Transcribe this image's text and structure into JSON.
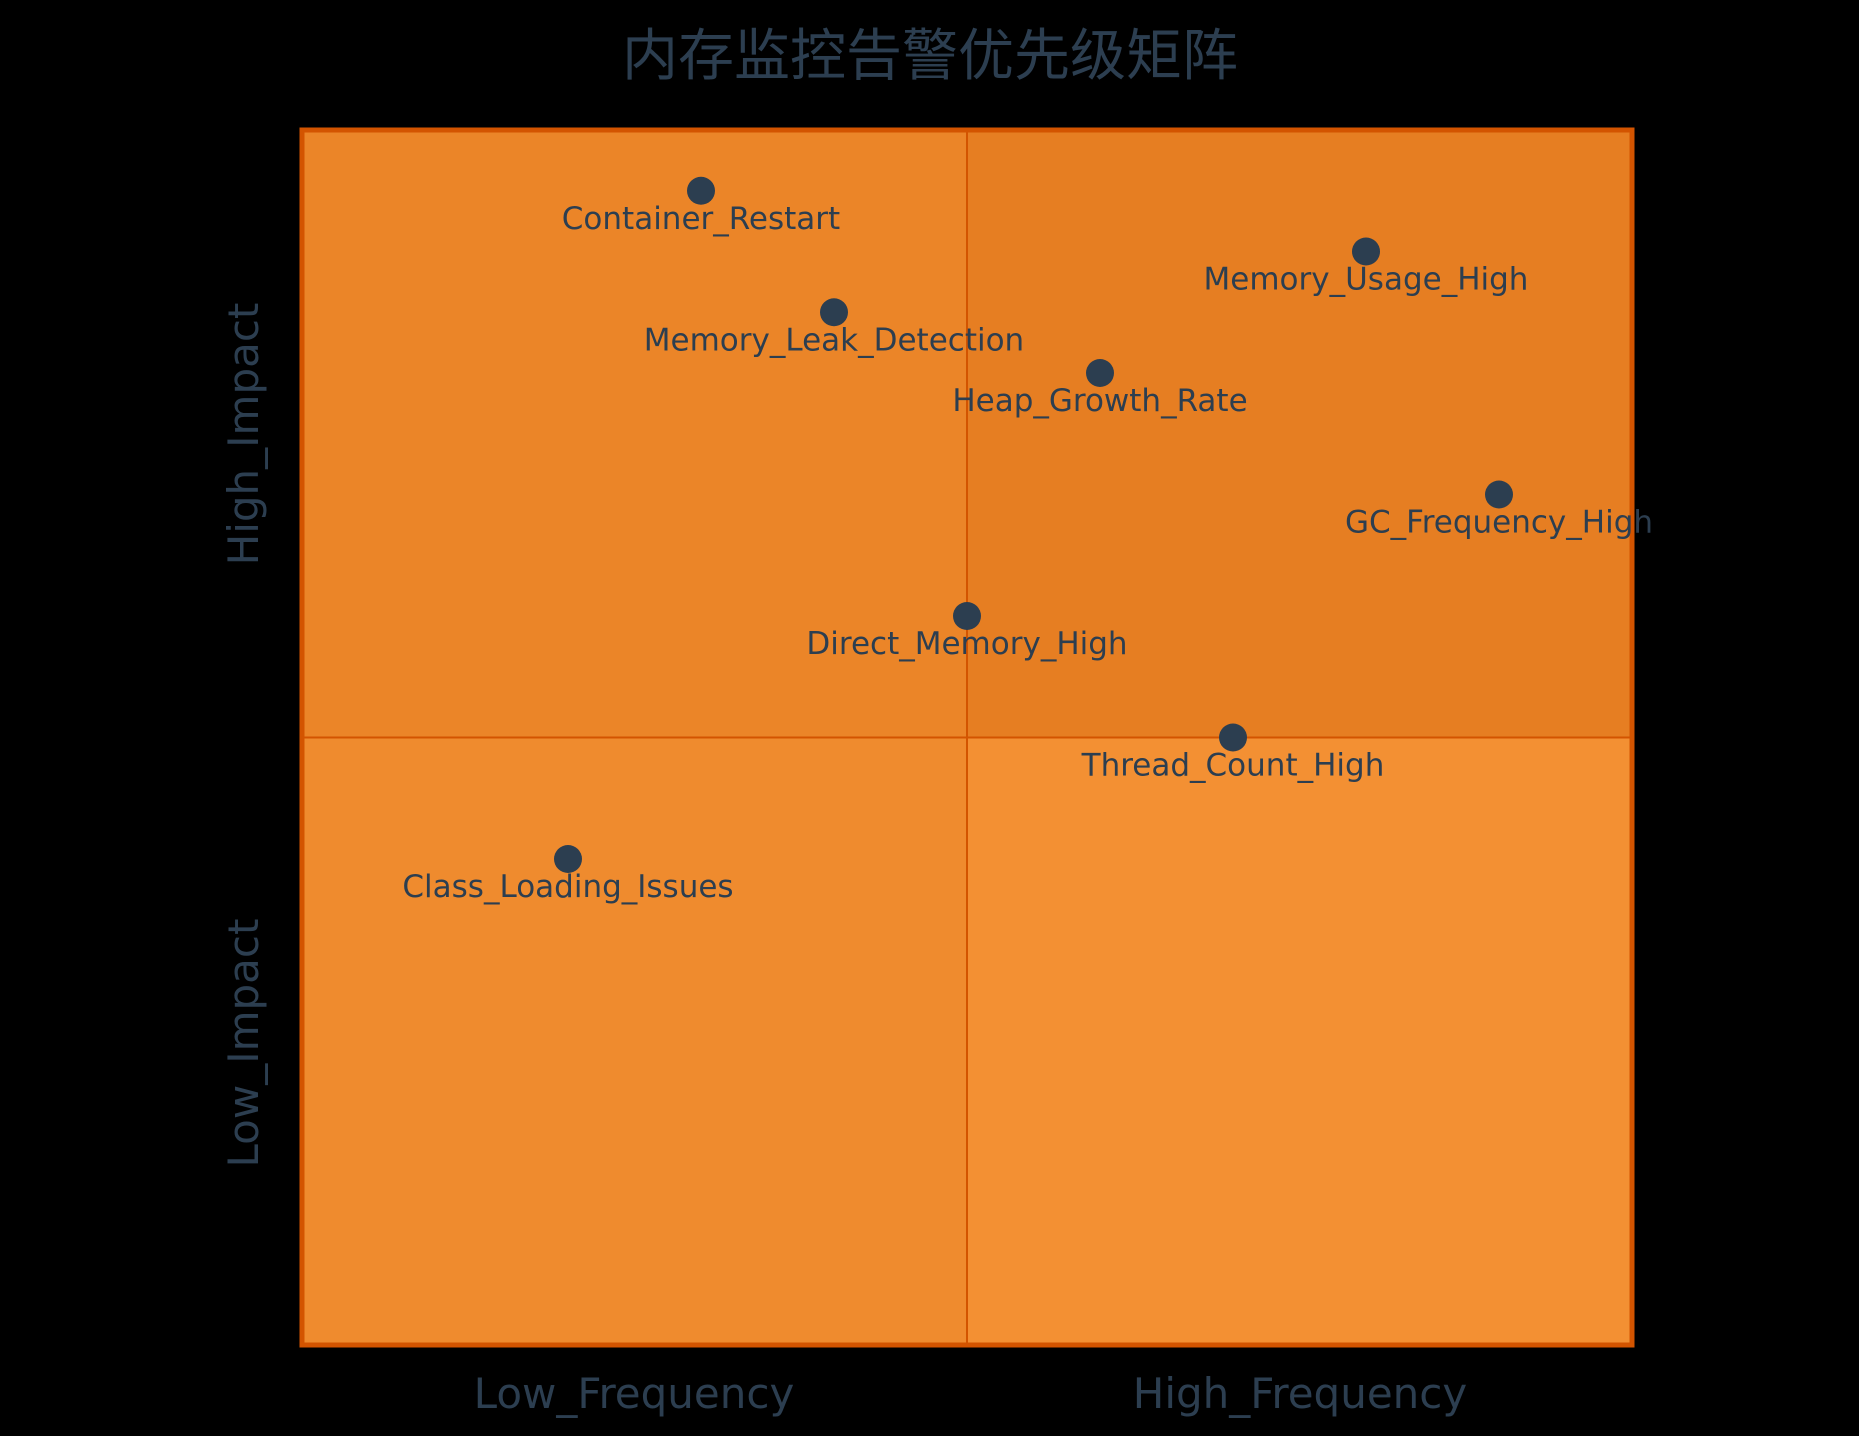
{
  "chart_data": {
    "type": "quadrant",
    "title": "内存监控告警优先级矩阵",
    "x_axis": {
      "left_label": "Low_Frequency",
      "right_label": "High_Frequency",
      "range": [
        0,
        1
      ]
    },
    "y_axis": {
      "bottom_label": "Low_Impact",
      "top_label": "High_Impact",
      "range": [
        0,
        1
      ]
    },
    "quadrant_colors": {
      "top_right": "#e67e22",
      "top_left": "#eb8528",
      "bottom_left": "#ef8b2e",
      "bottom_right": "#f39033",
      "border": "#d35400",
      "point": "#2c3e50",
      "text": "#2c3e50"
    },
    "points": [
      {
        "label": "Memory_Usage_High",
        "x": 0.8,
        "y": 0.9
      },
      {
        "label": "GC_Frequency_High",
        "x": 0.9,
        "y": 0.7
      },
      {
        "label": "Heap_Growth_Rate",
        "x": 0.6,
        "y": 0.8
      },
      {
        "label": "Memory_Leak_Detection",
        "x": 0.4,
        "y": 0.85
      },
      {
        "label": "Container_Restart",
        "x": 0.3,
        "y": 0.95
      },
      {
        "label": "Direct_Memory_High",
        "x": 0.5,
        "y": 0.6
      },
      {
        "label": "Thread_Count_High",
        "x": 0.7,
        "y": 0.5
      },
      {
        "label": "Class_Loading_Issues",
        "x": 0.2,
        "y": 0.4
      }
    ]
  }
}
